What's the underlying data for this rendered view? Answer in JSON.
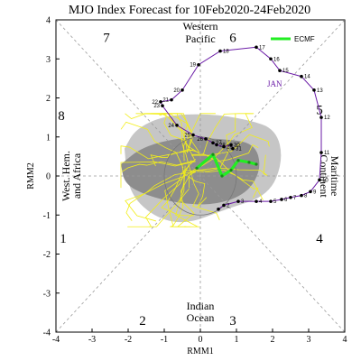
{
  "title": "MJO Index Forecast for 10Feb2020-24Feb2020",
  "colors": {
    "observed": "#6a1aa6",
    "forecast_mean": "#22ee22",
    "ensemble_members": "#f2ee1a",
    "spread_outer": "#c6c6c6",
    "spread_inner": "#8d8d8d",
    "guide_lines": "#999999"
  },
  "chart_data": {
    "type": "line",
    "xlabel": "RMM1",
    "ylabel": "RMM2",
    "xlim": [
      -4,
      4
    ],
    "ylim": [
      -4,
      4
    ],
    "xticks": [
      "-4",
      "-3",
      "-2",
      "-1",
      "0",
      "1",
      "2",
      "3",
      "4"
    ],
    "yticks": [
      "-4",
      "-3",
      "-2",
      "-1",
      "0",
      "1",
      "2",
      "3",
      "4"
    ],
    "phase_numbers": [
      "1",
      "2",
      "3",
      "4",
      "5",
      "6",
      "7",
      "8"
    ],
    "regions": {
      "top": [
        "Western",
        "Pacific"
      ],
      "bottom": [
        "Indian",
        "Ocean"
      ],
      "left": [
        "West. Hem.",
        "and Africa"
      ],
      "right": [
        "Maritime",
        "Continent"
      ]
    },
    "legend": [
      {
        "label": "ECMF",
        "color": "#22ee22"
      }
    ],
    "month_label": "JAN",
    "series": [
      {
        "role": "observed",
        "points": [
          {
            "day": "",
            "x": 0.5,
            "y": -0.85
          },
          {
            "day": "2",
            "x": 0.65,
            "y": -0.75
          },
          {
            "day": "3",
            "x": 1.05,
            "y": -0.65
          },
          {
            "day": "4",
            "x": 1.55,
            "y": -0.65
          },
          {
            "day": "5",
            "x": 1.95,
            "y": -0.65
          },
          {
            "day": "6",
            "x": 2.25,
            "y": -0.6
          },
          {
            "day": "7",
            "x": 2.5,
            "y": -0.55
          },
          {
            "day": "8",
            "x": 2.8,
            "y": -0.5
          },
          {
            "day": "9",
            "x": 3.05,
            "y": -0.4
          },
          {
            "day": "10",
            "x": 3.3,
            "y": -0.1
          },
          {
            "day": "11",
            "x": 3.35,
            "y": 0.6
          },
          {
            "day": "12",
            "x": 3.35,
            "y": 1.5
          },
          {
            "day": "13",
            "x": 3.15,
            "y": 2.2
          },
          {
            "day": "14",
            "x": 2.8,
            "y": 2.55
          },
          {
            "day": "15",
            "x": 2.2,
            "y": 2.7
          },
          {
            "day": "16",
            "x": 1.95,
            "y": 3.0
          },
          {
            "day": "17",
            "x": 1.55,
            "y": 3.3
          },
          {
            "day": "18",
            "x": 0.55,
            "y": 3.2
          },
          {
            "day": "19",
            "x": -0.05,
            "y": 2.85
          },
          {
            "day": "20",
            "x": -0.5,
            "y": 2.2
          },
          {
            "day": "21",
            "x": -0.8,
            "y": 1.95
          },
          {
            "day": "22",
            "x": -1.1,
            "y": 1.9
          },
          {
            "day": "23",
            "x": -1.05,
            "y": 1.8
          },
          {
            "day": "24",
            "x": -0.65,
            "y": 1.3
          },
          {
            "day": "25",
            "x": -0.2,
            "y": 1.05
          },
          {
            "day": "26",
            "x": 0.15,
            "y": 0.95
          },
          {
            "day": "27",
            "x": 0.35,
            "y": 0.85
          },
          {
            "day": "28",
            "x": 0.45,
            "y": 0.8
          },
          {
            "day": "29",
            "x": 0.65,
            "y": 0.75
          },
          {
            "day": "30",
            "x": 0.85,
            "y": 0.8
          },
          {
            "day": "31",
            "x": 0.9,
            "y": 0.7
          }
        ]
      },
      {
        "role": "forecast_mean",
        "name": "ECMF",
        "points": [
          {
            "x": -0.1,
            "y": 0.2
          },
          {
            "x": 0.35,
            "y": 0.55
          },
          {
            "x": 0.6,
            "y": 0.0
          },
          {
            "x": 0.85,
            "y": 0.15
          },
          {
            "x": 1.05,
            "y": 0.4
          },
          {
            "x": 1.35,
            "y": 0.35
          },
          {
            "x": 1.55,
            "y": 0.3
          }
        ]
      }
    ]
  }
}
